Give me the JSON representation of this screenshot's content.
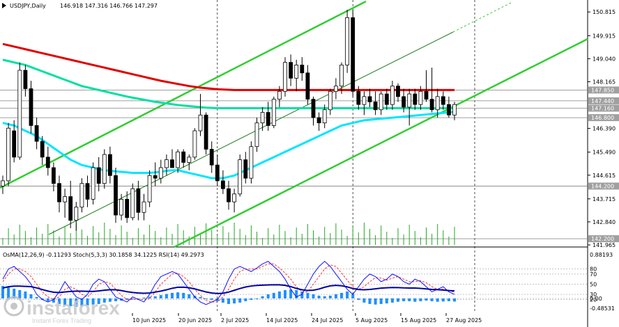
{
  "header": {
    "symbol_label": "USDJPY,Daily",
    "ohlc": "146.918 147.316 146.766 147.297"
  },
  "indicators_label": "OsMA(12,26,9) -0.11293  Stoch(5,3,3) 30.1858 34.1225  RSI(14) 49.2973",
  "watermark": {
    "brand": "instaforex",
    "tagline": "Instant Forex Trading"
  },
  "colors": {
    "bull": "#1db31d",
    "bear": "#1db31d",
    "channel": "#32cd32",
    "ma_red": "#e00000",
    "ma_green": "#00e0a0",
    "ma_cyan": "#00e5ff",
    "volume": "#22aa22",
    "stoch_main": "#1010ff",
    "stoch_signal": "#ff3030",
    "rsi": "#0000a0",
    "osma": "#1e90ff",
    "level_line": "#808080"
  },
  "chart_data": [
    {
      "type": "candlestick",
      "symbol": "USDJPY",
      "timeframe": "Daily",
      "ylim": [
        141.965,
        150.9
      ],
      "y_ticks": [
        "150.815",
        "149.915",
        "149.040",
        "148.165",
        "146.390",
        "145.490",
        "144.615",
        "143.715",
        "142.840",
        "141.965"
      ],
      "highlighted_levels": [
        "147.850",
        "147.440",
        "147.160",
        "146.800",
        "144.200",
        "142.200"
      ],
      "x_ticks": [
        "10 Jun 2025",
        "20 Jun 2025",
        "2 Jul 2025",
        "14 Jul 2025",
        "24 Jul 2025",
        "5 Aug 2025",
        "15 Aug 2025",
        "27 Aug 2025"
      ],
      "last_price": 147.297,
      "candles": [
        [
          144.2,
          144.6,
          143.9,
          144.4
        ],
        [
          144.4,
          146.6,
          144.2,
          146.4
        ],
        [
          146.3,
          146.7,
          145.1,
          145.3
        ],
        [
          145.3,
          148.9,
          145.2,
          148.6
        ],
        [
          148.6,
          148.8,
          147.6,
          147.9
        ],
        [
          147.9,
          148.2,
          146.2,
          146.5
        ],
        [
          146.5,
          146.8,
          145.6,
          145.9
        ],
        [
          145.9,
          146.1,
          145.0,
          145.3
        ],
        [
          145.3,
          145.7,
          144.6,
          144.9
        ],
        [
          144.9,
          145.1,
          144.0,
          144.3
        ],
        [
          144.3,
          144.6,
          143.2,
          143.6
        ],
        [
          143.6,
          144.1,
          143.0,
          143.8
        ],
        [
          143.8,
          144.4,
          142.6,
          142.9
        ],
        [
          142.9,
          143.6,
          142.5,
          143.4
        ],
        [
          143.4,
          144.5,
          143.2,
          144.3
        ],
        [
          144.3,
          144.6,
          143.4,
          143.7
        ],
        [
          143.7,
          145.1,
          143.5,
          144.9
        ],
        [
          144.9,
          145.3,
          144.0,
          144.3
        ],
        [
          144.3,
          145.6,
          144.1,
          145.4
        ],
        [
          145.4,
          145.7,
          144.3,
          144.6
        ],
        [
          144.6,
          144.9,
          142.8,
          143.1
        ],
        [
          143.1,
          143.9,
          142.9,
          143.7
        ],
        [
          143.7,
          144.0,
          142.8,
          143.0
        ],
        [
          143.0,
          144.3,
          142.9,
          144.1
        ],
        [
          144.1,
          144.4,
          142.9,
          143.2
        ],
        [
          143.2,
          143.9,
          142.9,
          143.6
        ],
        [
          143.6,
          144.8,
          143.4,
          144.6
        ],
        [
          144.6,
          145.1,
          144.2,
          144.5
        ],
        [
          144.5,
          145.2,
          144.3,
          144.9
        ],
        [
          144.9,
          145.4,
          144.6,
          145.2
        ],
        [
          145.2,
          145.6,
          144.9,
          144.9
        ],
        [
          144.9,
          145.6,
          144.7,
          145.5
        ],
        [
          145.5,
          145.6,
          144.9,
          145.1
        ],
        [
          145.1,
          145.4,
          144.8,
          145.3
        ],
        [
          145.3,
          146.4,
          145.2,
          146.3
        ],
        [
          146.3,
          147.7,
          146.1,
          146.9
        ],
        [
          146.9,
          147.0,
          145.4,
          145.6
        ],
        [
          145.6,
          145.9,
          144.7,
          145.0
        ],
        [
          145.0,
          145.4,
          144.2,
          144.4
        ],
        [
          144.4,
          144.8,
          143.9,
          144.1
        ],
        [
          144.1,
          144.4,
          143.3,
          143.6
        ],
        [
          143.6,
          144.1,
          143.2,
          143.9
        ],
        [
          143.9,
          145.4,
          143.8,
          145.2
        ],
        [
          145.2,
          145.5,
          144.3,
          144.5
        ],
        [
          144.5,
          145.9,
          144.3,
          145.7
        ],
        [
          145.7,
          146.8,
          145.5,
          146.6
        ],
        [
          146.6,
          147.2,
          146.3,
          147.0
        ],
        [
          147.0,
          147.4,
          146.3,
          146.5
        ],
        [
          146.5,
          147.6,
          146.4,
          147.5
        ],
        [
          147.5,
          148.0,
          147.2,
          147.8
        ],
        [
          147.8,
          149.1,
          147.6,
          148.9
        ],
        [
          148.9,
          149.2,
          148.0,
          148.3
        ],
        [
          148.3,
          149.0,
          147.8,
          148.8
        ],
        [
          148.8,
          149.1,
          148.2,
          148.5
        ],
        [
          148.5,
          148.8,
          147.3,
          147.5
        ],
        [
          147.5,
          147.6,
          146.5,
          146.8
        ],
        [
          146.8,
          147.0,
          146.3,
          146.6
        ],
        [
          146.6,
          147.3,
          146.4,
          147.1
        ],
        [
          147.1,
          147.9,
          146.9,
          147.8
        ],
        [
          147.8,
          148.3,
          147.5,
          148.0
        ],
        [
          148.0,
          148.9,
          147.7,
          148.8
        ],
        [
          148.8,
          150.9,
          148.5,
          150.6
        ],
        [
          150.6,
          150.9,
          147.6,
          147.8
        ],
        [
          147.8,
          148.0,
          147.1,
          147.3
        ],
        [
          147.3,
          147.8,
          146.9,
          147.6
        ],
        [
          147.6,
          147.9,
          147.2,
          147.4
        ],
        [
          147.4,
          147.8,
          146.9,
          147.1
        ],
        [
          147.1,
          147.8,
          146.9,
          147.7
        ],
        [
          147.7,
          147.9,
          147.1,
          147.3
        ],
        [
          147.3,
          148.2,
          147.1,
          148.0
        ],
        [
          148.0,
          148.1,
          147.4,
          147.6
        ],
        [
          147.6,
          147.9,
          147.0,
          147.2
        ],
        [
          147.2,
          147.9,
          146.5,
          147.7
        ],
        [
          147.7,
          147.9,
          147.1,
          147.3
        ],
        [
          147.3,
          148.0,
          147.1,
          147.8
        ],
        [
          147.8,
          148.6,
          147.4,
          147.5
        ],
        [
          147.5,
          148.7,
          147.0,
          147.1
        ],
        [
          147.1,
          147.9,
          146.8,
          147.6
        ],
        [
          147.6,
          147.8,
          147.1,
          147.3
        ],
        [
          147.3,
          147.6,
          146.8,
          146.9
        ],
        [
          146.9,
          147.4,
          146.7,
          147.3
        ]
      ],
      "moving_averages": [
        {
          "period_color": "ma_red",
          "values": [
            149.6,
            149.55,
            149.5,
            149.45,
            149.4,
            149.35,
            149.3,
            149.25,
            149.2,
            149.15,
            149.1,
            149.05,
            149.0,
            148.95,
            148.9,
            148.85,
            148.8,
            148.75,
            148.7,
            148.65,
            148.6,
            148.55,
            148.5,
            148.45,
            148.4,
            148.35,
            148.3,
            148.25,
            148.2,
            148.16,
            148.12,
            148.08,
            148.04,
            148.0,
            147.97,
            147.94,
            147.92,
            147.9,
            147.88,
            147.87,
            147.86,
            147.85,
            147.85,
            147.85,
            147.85,
            147.85,
            147.85,
            147.85,
            147.85,
            147.85,
            147.85,
            147.85,
            147.85,
            147.85,
            147.85,
            147.85,
            147.85,
            147.85,
            147.85,
            147.85,
            147.85,
            147.85,
            147.85,
            147.85,
            147.85,
            147.85,
            147.85,
            147.85,
            147.85,
            147.85,
            147.85,
            147.85,
            147.85,
            147.85,
            147.85,
            147.85,
            147.85,
            147.85,
            147.85,
            147.85,
            147.85
          ]
        },
        {
          "period_color": "ma_green",
          "values": [
            149.0,
            148.95,
            148.9,
            148.85,
            148.8,
            148.72,
            148.64,
            148.56,
            148.48,
            148.4,
            148.32,
            148.24,
            148.16,
            148.08,
            148.0,
            147.95,
            147.9,
            147.85,
            147.8,
            147.75,
            147.7,
            147.65,
            147.6,
            147.56,
            147.52,
            147.48,
            147.44,
            147.4,
            147.37,
            147.34,
            147.31,
            147.28,
            147.26,
            147.24,
            147.22,
            147.2,
            147.18,
            147.17,
            147.16,
            147.16,
            147.16,
            147.16,
            147.16,
            147.16,
            147.16,
            147.16,
            147.16,
            147.16,
            147.16,
            147.16,
            147.16,
            147.16,
            147.16,
            147.16,
            147.16,
            147.16,
            147.16,
            147.16,
            147.16,
            147.16,
            147.16,
            147.16,
            147.16,
            147.16,
            147.16,
            147.16,
            147.16,
            147.16,
            147.16,
            147.16,
            147.16,
            147.16,
            147.16,
            147.16,
            147.16,
            147.16,
            147.16,
            147.16,
            147.16,
            147.16,
            147.16
          ]
        },
        {
          "period_color": "ma_cyan",
          "values": [
            146.6,
            146.55,
            146.5,
            146.4,
            146.3,
            146.2,
            146.1,
            145.95,
            145.8,
            145.65,
            145.5,
            145.35,
            145.2,
            145.1,
            145.0,
            144.95,
            144.9,
            144.85,
            144.8,
            144.78,
            144.76,
            144.74,
            144.72,
            144.7,
            144.7,
            144.7,
            144.7,
            144.72,
            144.74,
            144.78,
            144.8,
            144.8,
            144.75,
            144.7,
            144.65,
            144.6,
            144.55,
            144.5,
            144.5,
            144.5,
            144.55,
            144.6,
            144.7,
            144.8,
            144.9,
            145.0,
            145.1,
            145.2,
            145.3,
            145.4,
            145.5,
            145.6,
            145.7,
            145.8,
            145.9,
            146.0,
            146.1,
            146.2,
            146.3,
            146.4,
            146.5,
            146.55,
            146.6,
            146.65,
            146.7,
            146.72,
            146.74,
            146.76,
            146.78,
            146.8,
            146.82,
            146.84,
            146.86,
            146.88,
            146.9,
            146.92,
            146.94,
            146.96,
            146.98,
            147.0,
            147.02
          ]
        }
      ]
    },
    {
      "type": "indicators",
      "ylim_labels": {
        "osma_top": "0.88193",
        "osma_bottom": "-0.48531"
      },
      "levels": [
        "80",
        "70",
        "50",
        "30",
        "20",
        "0.00"
      ],
      "osma": [
        0.45,
        0.4,
        0.35,
        0.3,
        0.25,
        0.15,
        0.05,
        -0.05,
        -0.1,
        -0.15,
        -0.2,
        -0.25,
        -0.28,
        -0.3,
        -0.28,
        -0.25,
        -0.22,
        -0.2,
        -0.15,
        -0.12,
        -0.1,
        -0.08,
        -0.05,
        -0.03,
        0.0,
        0.03,
        0.06,
        0.08,
        0.12,
        0.16,
        0.2,
        0.22,
        0.2,
        0.15,
        0.1,
        0.05,
        0.0,
        -0.05,
        -0.1,
        -0.15,
        -0.2,
        -0.18,
        -0.15,
        -0.1,
        -0.05,
        0.0,
        0.08,
        0.15,
        0.2,
        0.25,
        0.3,
        0.32,
        0.3,
        0.25,
        0.2,
        0.15,
        0.1,
        0.08,
        0.1,
        0.15,
        0.2,
        0.25,
        0.15,
        -0.05,
        -0.15,
        -0.2,
        -0.22,
        -0.2,
        -0.18,
        -0.15,
        -0.12,
        -0.1,
        -0.1,
        -0.12,
        -0.1,
        -0.08,
        -0.1,
        -0.12,
        -0.11,
        -0.1,
        -0.11293
      ],
      "stoch_main": [
        60,
        80,
        85,
        75,
        65,
        50,
        30,
        20,
        15,
        20,
        35,
        55,
        40,
        25,
        20,
        30,
        50,
        60,
        55,
        40,
        25,
        20,
        15,
        25,
        20,
        15,
        30,
        50,
        65,
        70,
        75,
        70,
        55,
        40,
        25,
        15,
        10,
        15,
        20,
        35,
        60,
        80,
        85,
        80,
        75,
        82,
        90,
        95,
        85,
        75,
        60,
        40,
        25,
        30,
        50,
        70,
        85,
        95,
        85,
        70,
        55,
        40,
        30,
        45,
        60,
        70,
        65,
        55,
        60,
        70,
        65,
        55,
        50,
        60,
        55,
        45,
        35,
        40,
        45,
        35,
        30
      ],
      "stoch_signal": [
        55,
        70,
        80,
        80,
        75,
        65,
        50,
        35,
        25,
        20,
        25,
        40,
        45,
        40,
        30,
        25,
        35,
        50,
        55,
        52,
        40,
        28,
        20,
        20,
        20,
        20,
        22,
        35,
        50,
        60,
        70,
        72,
        65,
        55,
        40,
        28,
        18,
        15,
        15,
        25,
        40,
        60,
        75,
        80,
        80,
        80,
        85,
        90,
        90,
        82,
        72,
        60,
        45,
        35,
        35,
        50,
        65,
        80,
        88,
        85,
        72,
        58,
        45,
        40,
        45,
        55,
        63,
        62,
        58,
        62,
        65,
        60,
        55,
        55,
        57,
        53,
        45,
        40,
        40,
        38,
        34
      ]
    }
  ]
}
